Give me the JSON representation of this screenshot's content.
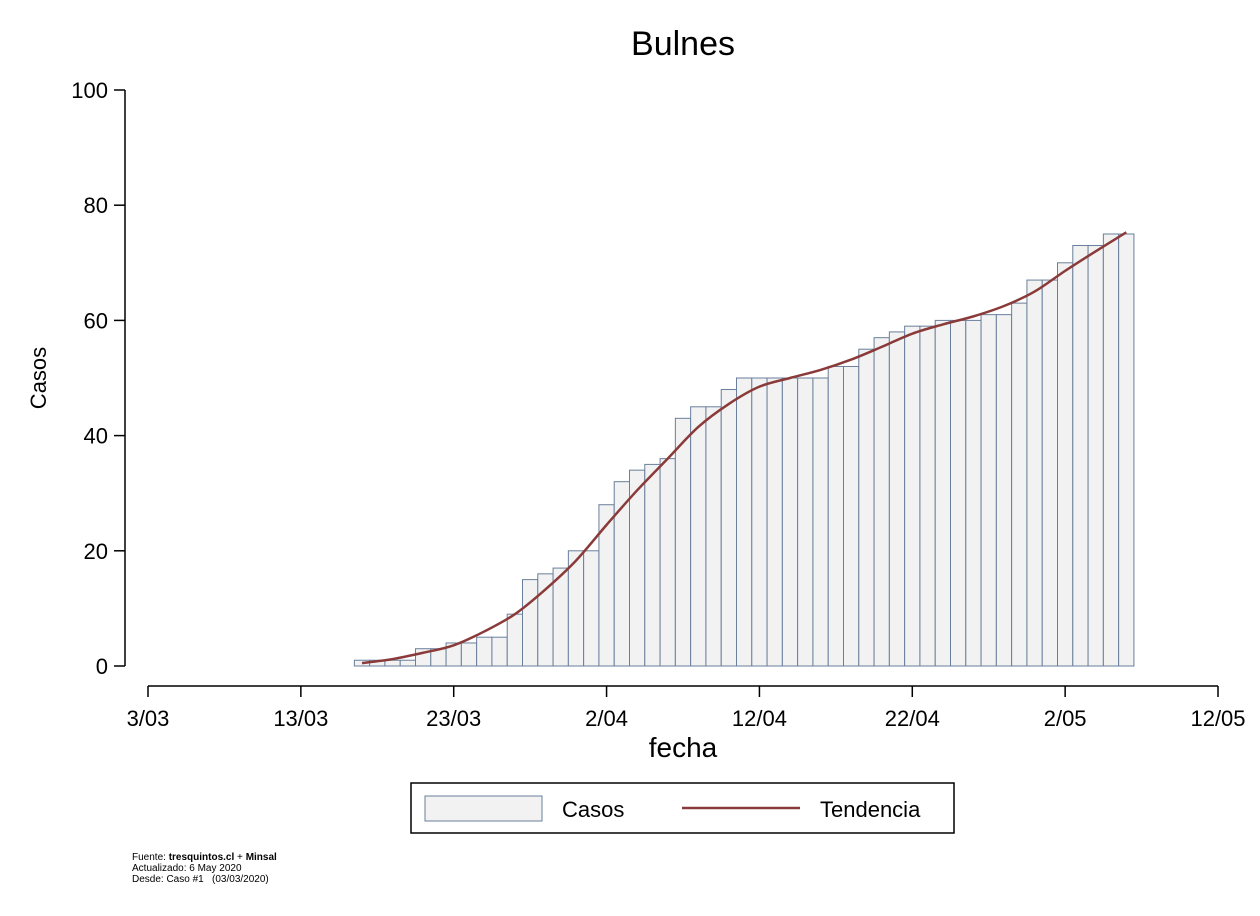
{
  "chart_data": {
    "type": "bar",
    "title": "Bulnes",
    "xlabel": "fecha",
    "ylabel": "Casos",
    "ylim": [
      0,
      100
    ],
    "yticks": [
      0,
      20,
      40,
      60,
      80,
      100
    ],
    "xticks": [
      "3/03",
      "13/03",
      "23/03",
      "2/04",
      "12/04",
      "22/04",
      "2/05",
      "12/05"
    ],
    "x_range_days": [
      0,
      70
    ],
    "x_start_date": "2020-03-03",
    "legend_placement": "bottom",
    "grid": false,
    "series": [
      {
        "name": "Casos",
        "kind": "bar",
        "color": "#f2f2f2",
        "edge_color": "#6a7f9c",
        "dates": [
          "2020-03-17",
          "2020-03-18",
          "2020-03-19",
          "2020-03-20",
          "2020-03-21",
          "2020-03-22",
          "2020-03-23",
          "2020-03-24",
          "2020-03-25",
          "2020-03-26",
          "2020-03-27",
          "2020-03-28",
          "2020-03-29",
          "2020-03-30",
          "2020-03-31",
          "2020-04-01",
          "2020-04-02",
          "2020-04-03",
          "2020-04-04",
          "2020-04-05",
          "2020-04-06",
          "2020-04-07",
          "2020-04-08",
          "2020-04-09",
          "2020-04-10",
          "2020-04-11",
          "2020-04-12",
          "2020-04-13",
          "2020-04-14",
          "2020-04-15",
          "2020-04-16",
          "2020-04-17",
          "2020-04-18",
          "2020-04-19",
          "2020-04-20",
          "2020-04-21",
          "2020-04-22",
          "2020-04-23",
          "2020-04-24",
          "2020-04-25",
          "2020-04-26",
          "2020-04-27",
          "2020-04-28",
          "2020-04-29",
          "2020-04-30",
          "2020-05-01",
          "2020-05-02",
          "2020-05-03",
          "2020-05-04",
          "2020-05-05",
          "2020-05-06"
        ],
        "values": [
          1,
          1,
          1,
          1,
          3,
          3,
          4,
          4,
          5,
          5,
          9,
          15,
          16,
          17,
          20,
          20,
          28,
          32,
          34,
          35,
          36,
          43,
          45,
          45,
          48,
          50,
          50,
          50,
          50,
          50,
          50,
          52,
          52,
          55,
          57,
          58,
          59,
          59,
          60,
          60,
          60,
          61,
          61,
          63,
          67,
          67,
          70,
          73,
          73,
          75,
          75
        ]
      },
      {
        "name": "Tendencia",
        "kind": "line",
        "color": "#8b3a3a",
        "dates": [
          "2020-03-17",
          "2020-03-19",
          "2020-03-21",
          "2020-03-23",
          "2020-03-25",
          "2020-03-27",
          "2020-03-29",
          "2020-03-31",
          "2020-04-02",
          "2020-04-04",
          "2020-04-06",
          "2020-04-08",
          "2020-04-10",
          "2020-04-12",
          "2020-04-14",
          "2020-04-16",
          "2020-04-18",
          "2020-04-20",
          "2020-04-22",
          "2020-04-24",
          "2020-04-26",
          "2020-04-28",
          "2020-04-30",
          "2020-05-02",
          "2020-05-04",
          "2020-05-06"
        ],
        "values": [
          0.5,
          1.2,
          2.3,
          3.6,
          6,
          9,
          13.3,
          18.3,
          24.5,
          30.5,
          36,
          41.5,
          45.5,
          48.5,
          50,
          51.4,
          53.2,
          55.4,
          57.7,
          59.3,
          60.7,
          62.5,
          65,
          68.6,
          72,
          75.3
        ]
      }
    ]
  },
  "legend": {
    "bar_label": "Casos",
    "line_label": "Tendencia"
  },
  "footer": {
    "source_prefix": "Fuente: ",
    "source_site": "tresquintos.cl",
    "source_plus": " + ",
    "source_org": "Minsal",
    "updated": "Actualizado: 6 May 2020",
    "since": "Desde: Caso #1   (03/03/2020)"
  }
}
